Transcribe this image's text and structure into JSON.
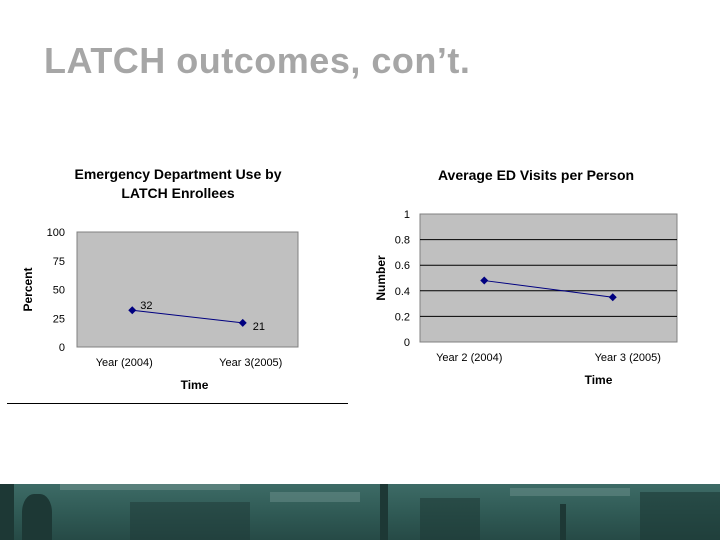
{
  "slide": {
    "title": "LATCH outcomes, con’t."
  },
  "colors": {
    "title_gray": "#a6a6a6",
    "plot_bg": "#c0c0c0",
    "series_line": "#000080",
    "footer_teal": "#2f5954"
  },
  "chart_data": [
    {
      "type": "line",
      "title": "Emergency Department Use by LATCH Enrollees",
      "title_lines": [
        "Emergency Department Use by",
        "LATCH Enrollees"
      ],
      "xlabel": "Time",
      "ylabel": "Percent",
      "categories": [
        "Year (2004)",
        "Year 3(2005)"
      ],
      "series": [
        {
          "values": [
            32,
            21
          ],
          "data_labels": [
            "32",
            "21"
          ]
        }
      ],
      "ylim": [
        0,
        100
      ],
      "yticks": [
        0,
        25,
        50,
        75,
        100
      ],
      "ytick_labels": [
        "0",
        "25",
        "50",
        "75",
        "100"
      ],
      "grid": false,
      "legend": "none"
    },
    {
      "type": "line",
      "title": "Average ED Visits per Person",
      "title_lines": [
        "Average ED Visits per Person"
      ],
      "xlabel": "Time",
      "ylabel": "Number",
      "categories": [
        "Year 2 (2004)",
        "Year 3 (2005)"
      ],
      "series": [
        {
          "values": [
            0.48,
            0.35
          ],
          "data_labels": []
        }
      ],
      "ylim": [
        0,
        1
      ],
      "yticks": [
        0,
        0.2,
        0.4,
        0.6,
        0.8,
        1
      ],
      "ytick_labels": [
        "0",
        "0.2",
        "0.4",
        "0.6",
        "0.8",
        "1"
      ],
      "grid": true,
      "legend": "none"
    }
  ]
}
